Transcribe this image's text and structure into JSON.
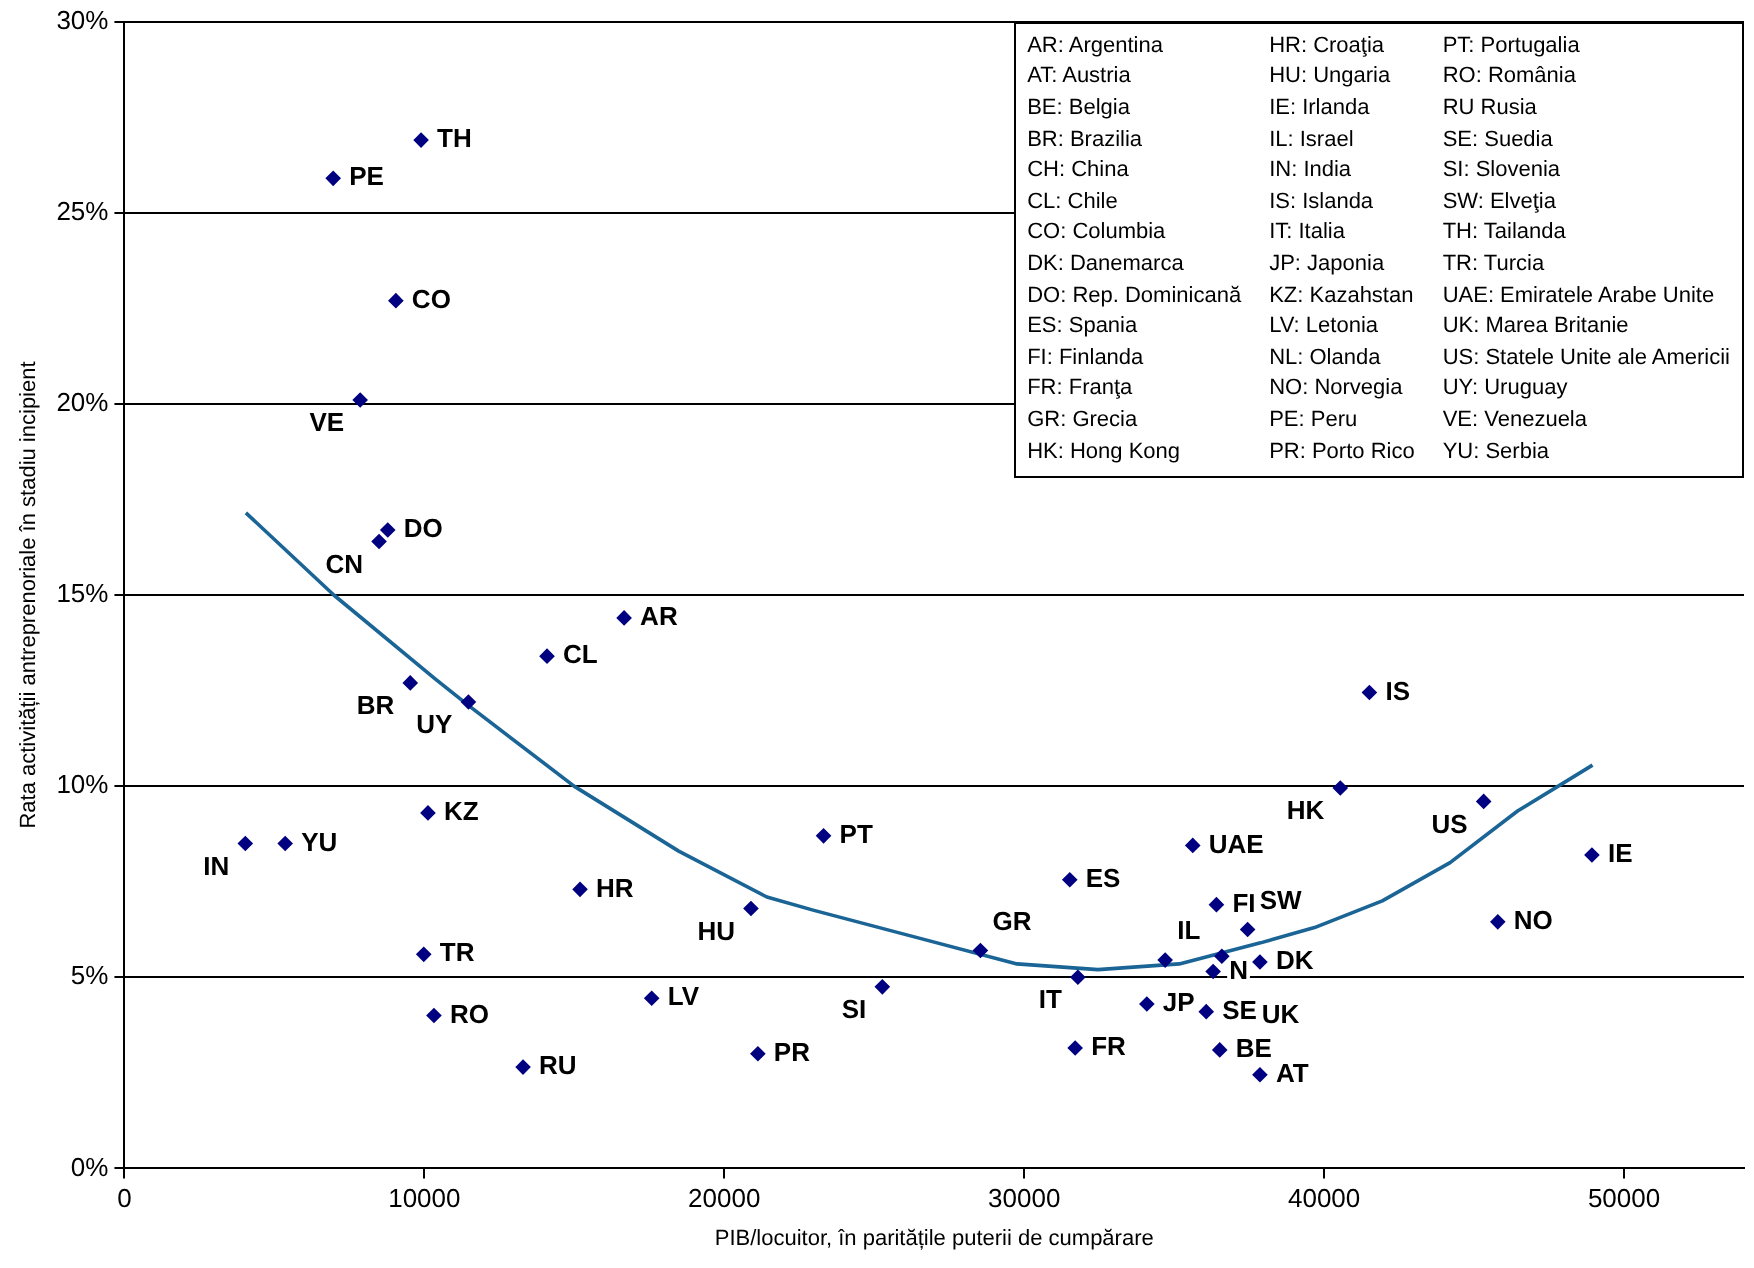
{
  "chart_data": {
    "type": "scatter",
    "xlabel": "PIB/locuitor, în paritățile puterii de cumpărare",
    "ylabel": "Rata activității antreprenoriale în stadiu incipient",
    "xlim": [
      0,
      54000
    ],
    "xticks": [
      0,
      10000,
      20000,
      30000,
      40000,
      50000
    ],
    "ylim": [
      0,
      30
    ],
    "yticks": [
      {
        "value": 0,
        "label": "0%"
      },
      {
        "value": 5,
        "label": "5%"
      },
      {
        "value": 10,
        "label": "10%"
      },
      {
        "value": 15,
        "label": "15%"
      },
      {
        "value": 20,
        "label": "20%"
      },
      {
        "value": 25,
        "label": "25%"
      },
      {
        "value": 30,
        "label": "30%"
      }
    ],
    "grid": "y",
    "legend": false,
    "marker": "diamond",
    "series": [
      {
        "type": "scatter",
        "color": "#000080",
        "x": [
          9890,
          6960,
          9050,
          7860,
          8780,
          8490,
          14090,
          16660,
          9530,
          11470,
          10120,
          4030,
          5360,
          15190,
          9980,
          10320,
          13290,
          17580,
          20890,
          21120,
          23310,
          25270,
          28540,
          31520,
          31790,
          31700,
          34090,
          35620,
          34700,
          36070,
          36410,
          36590,
          36300,
          36520,
          37450,
          37860,
          37860,
          40540,
          41510,
          45320,
          45790,
          48930
        ],
        "values": [
          26.9,
          25.9,
          22.7,
          20.1,
          16.7,
          16.4,
          13.4,
          14.4,
          12.7,
          12.2,
          9.3,
          8.5,
          8.5,
          7.3,
          5.6,
          4.0,
          2.65,
          4.45,
          6.8,
          3.0,
          8.7,
          4.75,
          5.7,
          7.55,
          5.0,
          3.15,
          4.3,
          8.45,
          5.45,
          4.1,
          6.9,
          5.55,
          5.15,
          3.1,
          6.25,
          5.4,
          2.45,
          9.95,
          12.45,
          9.6,
          6.45,
          8.2
        ]
      },
      {
        "type": "line",
        "color": "#1a6496",
        "marker": "none",
        "line_style": "solid",
        "x": [
          4050,
          6980,
          10370,
          11490,
          14990,
          18480,
          21420,
          22990,
          26370,
          29760,
          32460,
          35170,
          37880,
          39680,
          41940,
          44200,
          46450,
          48950
        ],
        "values": [
          17.15,
          15.0,
          12.8,
          12.1,
          10.0,
          8.3,
          7.1,
          6.75,
          6.05,
          5.35,
          5.2,
          5.35,
          5.9,
          6.3,
          7.0,
          8.0,
          9.35,
          10.55
        ]
      }
    ],
    "annotations": [
      {
        "text": "TH",
        "x": 9890,
        "y": 26.9
      },
      {
        "text": "PE",
        "x": 6960,
        "y": 25.9
      },
      {
        "text": "CO",
        "x": 9050,
        "y": 22.7
      },
      {
        "text": "VE",
        "x": 7860,
        "y": 20.1
      },
      {
        "text": "DO",
        "x": 8780,
        "y": 16.7
      },
      {
        "text": "CN",
        "x": 8490,
        "y": 16.4
      },
      {
        "text": "CL",
        "x": 14090,
        "y": 13.4
      },
      {
        "text": "AR",
        "x": 16660,
        "y": 14.4
      },
      {
        "text": "BR",
        "x": 9530,
        "y": 12.7
      },
      {
        "text": "UY",
        "x": 11470,
        "y": 12.2
      },
      {
        "text": "KZ",
        "x": 10120,
        "y": 9.3
      },
      {
        "text": "IN",
        "x": 4030,
        "y": 8.5
      },
      {
        "text": "YU",
        "x": 5360,
        "y": 8.5
      },
      {
        "text": "HR",
        "x": 15190,
        "y": 7.3
      },
      {
        "text": "TR",
        "x": 9980,
        "y": 5.6
      },
      {
        "text": "RO",
        "x": 10320,
        "y": 4.0
      },
      {
        "text": "RU",
        "x": 13290,
        "y": 2.65
      },
      {
        "text": "LV",
        "x": 17580,
        "y": 4.45
      },
      {
        "text": "HU",
        "x": 20890,
        "y": 6.8
      },
      {
        "text": "PR",
        "x": 21120,
        "y": 3.0
      },
      {
        "text": "PT",
        "x": 23310,
        "y": 8.7
      },
      {
        "text": "SI",
        "x": 25270,
        "y": 4.75
      },
      {
        "text": "GR",
        "x": 28540,
        "y": 5.7
      },
      {
        "text": "ES",
        "x": 31520,
        "y": 7.55
      },
      {
        "text": "IT",
        "x": 31790,
        "y": 5.0
      },
      {
        "text": "FR",
        "x": 31700,
        "y": 3.15
      },
      {
        "text": "JP",
        "x": 34090,
        "y": 4.3
      },
      {
        "text": "UAE",
        "x": 35620,
        "y": 8.45
      },
      {
        "text": "IL",
        "x": 34700,
        "y": 5.45
      },
      {
        "text": "SE",
        "x": 36070,
        "y": 4.1
      },
      {
        "text": "FI",
        "x": 36410,
        "y": 6.9
      },
      {
        "text": "UK",
        "x": 36590,
        "y": 5.55
      },
      {
        "text": "N",
        "x": 36300,
        "y": 5.15
      },
      {
        "text": "BE",
        "x": 36520,
        "y": 3.1
      },
      {
        "text": "SW",
        "x": 37450,
        "y": 6.25
      },
      {
        "text": "DK",
        "x": 37860,
        "y": 5.4
      },
      {
        "text": "AT",
        "x": 37860,
        "y": 2.45
      },
      {
        "text": "HK",
        "x": 40540,
        "y": 9.95
      },
      {
        "text": "IS",
        "x": 41510,
        "y": 12.45
      },
      {
        "text": "US",
        "x": 45320,
        "y": 9.6
      },
      {
        "text": "NO",
        "x": 45790,
        "y": 6.45
      },
      {
        "text": "IE",
        "x": 48930,
        "y": 8.2
      },
      "AR: Argentina",
      "AT: Austria",
      "BE: Belgia",
      "BR: Brazilia",
      "CH: China",
      "CL: Chile",
      "CO: Columbia",
      "DK: Danemarca",
      "DO: Rep. Dominicană",
      "ES: Spania",
      "FI: Finlanda",
      "FR: Franţa",
      "GR: Grecia",
      "HK: Hong Kong",
      "HR: Croaţia",
      "HU: Ungaria",
      "IE: Irlanda",
      "IL: Israel",
      "IN: India",
      "IS: Islanda",
      "IT: Italia",
      "JP: Japonia",
      "KZ: Kazahstan",
      "LV: Letonia",
      "NL: Olanda",
      "NO: Norvegia",
      "PE: Peru",
      "PR: Porto Rico",
      "PT: Portugalia",
      "RO: România",
      "RU Rusia",
      "SE: Suedia",
      "SI: Slovenia",
      "SW: Elveţia",
      "TH: Tailanda",
      "TR: Turcia",
      "UAE: Emiratele Arabe Unite",
      "UK: Marea Britanie",
      "US: Statele Unite ale Americii",
      "UY: Uruguay",
      "VE: Venezuela",
      "YU: Serbia"
    ]
  }
}
